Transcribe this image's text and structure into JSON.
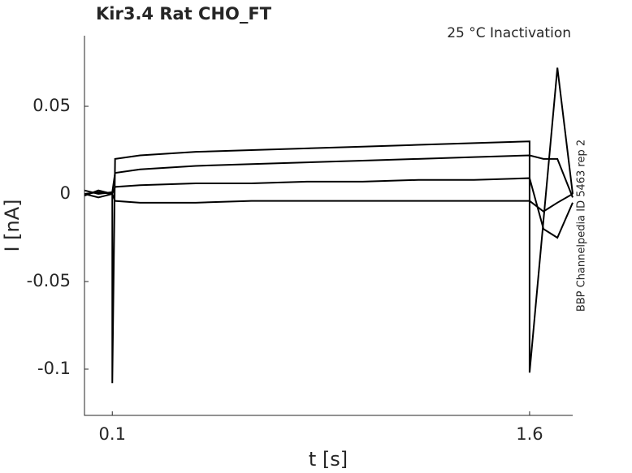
{
  "chart_data": {
    "type": "line",
    "title": "Kir3.4  Rat  CHO_FT",
    "subtitle": "25 °C  Inactivation",
    "side_label": "BBP Channelpedia ID 5463 rep 2",
    "x_label": "t [s]",
    "y_label": "I [nA]",
    "x": [
      0,
      0.05,
      0.1,
      0.1,
      0.11,
      0.2,
      0.4,
      0.6,
      0.8,
      1.0,
      1.2,
      1.4,
      1.6,
      1.6,
      1.65,
      1.7,
      1.755
    ],
    "series": [
      {
        "color": "#000000",
        "values": [
          0,
          0.001,
          0,
          -0.108,
          0.02,
          0.022,
          0.024,
          0.025,
          0.026,
          0.027,
          0.028,
          0.029,
          0.03,
          -0.102,
          -0.015,
          0.072,
          0
        ]
      },
      {
        "color": "#000000",
        "values": [
          0.002,
          0,
          0.001,
          0.001,
          0.012,
          0.014,
          0.016,
          0.017,
          0.018,
          0.019,
          0.02,
          0.021,
          0.022,
          0.022,
          0.02,
          0.02,
          -0.002
        ]
      },
      {
        "color": "#000000",
        "values": [
          -0.001,
          0.002,
          0,
          0,
          0.004,
          0.005,
          0.006,
          0.006,
          0.007,
          0.007,
          0.008,
          0.008,
          0.009,
          0.009,
          -0.02,
          -0.025,
          -0.005
        ]
      },
      {
        "color": "#000000",
        "values": [
          0,
          -0.002,
          0,
          0,
          -0.004,
          -0.005,
          -0.005,
          -0.004,
          -0.004,
          -0.004,
          -0.004,
          -0.004,
          -0.004,
          -0.004,
          -0.01,
          -0.005,
          0
        ]
      }
    ],
    "xlim": [
      0,
      1.755
    ],
    "ylim": [
      -0.1264,
      0.0903
    ],
    "xticks": [
      0.1,
      1.6
    ],
    "yticks": [
      -0.1,
      -0.05,
      0,
      0.05
    ]
  }
}
